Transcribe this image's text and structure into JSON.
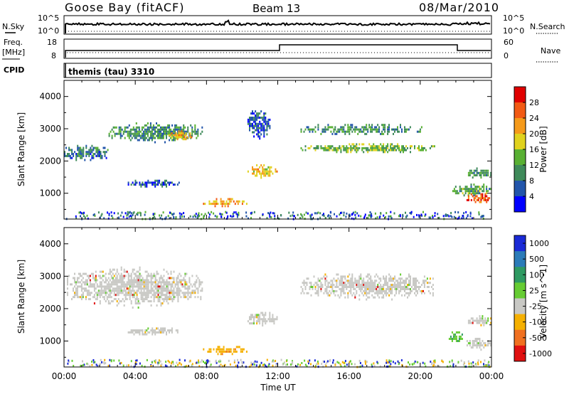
{
  "header": {
    "title": "Goose Bay (fitACF)",
    "beam": "Beam 13",
    "date": "08/Mar/2010"
  },
  "noise_panel": {
    "left_label": "N.Sky",
    "right_label": "N.Search",
    "left_ticks": [
      "10^5",
      "10^0"
    ],
    "right_ticks": [
      "10^5",
      "10^0"
    ]
  },
  "freq_panel": {
    "left_label_line1": "Freq.",
    "left_label_line2": "[MHz]",
    "right_label": "Nave",
    "left_ticks": [
      "18",
      "8"
    ],
    "right_ticks": [
      "60",
      "0"
    ]
  },
  "cpid_panel": {
    "label": "CPID",
    "mode_text": "themis (tau) 3310"
  },
  "colors": {
    "power_scale": [
      "#0000ff",
      "#2255aa",
      "#3f8a5a",
      "#59b033",
      "#e0d21e",
      "#f59a1a",
      "#f25a14",
      "#e00000"
    ],
    "velocity_scale": [
      "#1a2ad6",
      "#2b7bb8",
      "#2f9a62",
      "#66cc33",
      "#c8c8c4",
      "#f5b000",
      "#f07020",
      "#e01010",
      "#e00000"
    ],
    "ground_scatter": "#c8c8c4"
  },
  "chart_data": [
    {
      "type": "heatmap",
      "title": "",
      "xlabel": "Time UT",
      "ylabel": "Slant Range [km]",
      "xlim": [
        "00:00",
        "24:00"
      ],
      "ylim": [
        200,
        4500
      ],
      "x_ticks": [
        "00:00",
        "04:00",
        "08:00",
        "12:00",
        "16:00",
        "20:00",
        "00:00"
      ],
      "y_ticks": [
        "1000",
        "2000",
        "3000",
        "4000"
      ],
      "colorbar": {
        "label": "Power [dB]",
        "ticks": [
          "4",
          "8",
          "12",
          "16",
          "20",
          "24",
          "28"
        ]
      },
      "echo_regions": [
        {
          "t_start": 0.0,
          "t_end": 2.5,
          "r_start": 2000,
          "r_end": 2500,
          "power_db": 8
        },
        {
          "t_start": 2.5,
          "t_end": 7.8,
          "r_start": 2550,
          "r_end": 3200,
          "power_db": 10
        },
        {
          "t_start": 5.7,
          "t_end": 7.2,
          "r_start": 2650,
          "r_end": 2950,
          "power_db": 20
        },
        {
          "t_start": 3.5,
          "t_end": 6.5,
          "r_start": 1180,
          "r_end": 1420,
          "power_db": 6
        },
        {
          "t_start": 7.8,
          "t_end": 10.3,
          "r_start": 560,
          "r_end": 850,
          "power_db": 22
        },
        {
          "t_start": 10.3,
          "t_end": 12.0,
          "r_start": 1450,
          "r_end": 1900,
          "power_db": 20
        },
        {
          "t_start": 10.3,
          "t_end": 11.6,
          "r_start": 2600,
          "r_end": 3700,
          "power_db": 6
        },
        {
          "t_start": 13.2,
          "t_end": 21.0,
          "r_start": 2250,
          "r_end": 2550,
          "power_db": 14
        },
        {
          "t_start": 13.2,
          "t_end": 20.2,
          "r_start": 2800,
          "r_end": 3150,
          "power_db": 10
        },
        {
          "t_start": 21.8,
          "t_end": 24.0,
          "r_start": 900,
          "r_end": 1300,
          "power_db": 12
        },
        {
          "t_start": 22.6,
          "t_end": 24.0,
          "r_start": 700,
          "r_end": 1000,
          "power_db": 26
        },
        {
          "t_start": 22.6,
          "t_end": 24.0,
          "r_start": 1450,
          "r_end": 1800,
          "power_db": 12
        }
      ]
    },
    {
      "type": "heatmap",
      "title": "",
      "xlabel": "Time UT",
      "ylabel": "Slant Range [km]",
      "xlim": [
        "00:00",
        "24:00"
      ],
      "ylim": [
        200,
        4500
      ],
      "x_ticks": [
        "00:00",
        "04:00",
        "08:00",
        "12:00",
        "16:00",
        "20:00",
        "00:00"
      ],
      "y_ticks": [
        "1000",
        "2000",
        "3000",
        "4000"
      ],
      "colorbar": {
        "label": "Velocity [m s^-1]",
        "ticks": [
          "1000",
          "500",
          "100",
          "25",
          "-25",
          "-100",
          "-500",
          "-1000"
        ]
      },
      "echo_regions": [
        {
          "t_start": 0.0,
          "t_end": 7.8,
          "r_start": 2000,
          "r_end": 3300,
          "velocity": 0
        },
        {
          "t_start": 3.5,
          "t_end": 6.5,
          "r_start": 1180,
          "r_end": 1420,
          "velocity": 0
        },
        {
          "t_start": 7.8,
          "t_end": 10.3,
          "r_start": 560,
          "r_end": 850,
          "velocity": -150
        },
        {
          "t_start": 10.3,
          "t_end": 12.0,
          "r_start": 1450,
          "r_end": 1900,
          "velocity": 0
        },
        {
          "t_start": 13.2,
          "t_end": 21.0,
          "r_start": 2250,
          "r_end": 3150,
          "velocity": 0
        },
        {
          "t_start": 21.6,
          "t_end": 22.4,
          "r_start": 900,
          "r_end": 1300,
          "velocity": 120
        },
        {
          "t_start": 22.6,
          "t_end": 24.0,
          "r_start": 700,
          "r_end": 1100,
          "velocity": 0
        },
        {
          "t_start": 22.6,
          "t_end": 24.0,
          "r_start": 1450,
          "r_end": 1800,
          "velocity": 0
        }
      ]
    }
  ]
}
